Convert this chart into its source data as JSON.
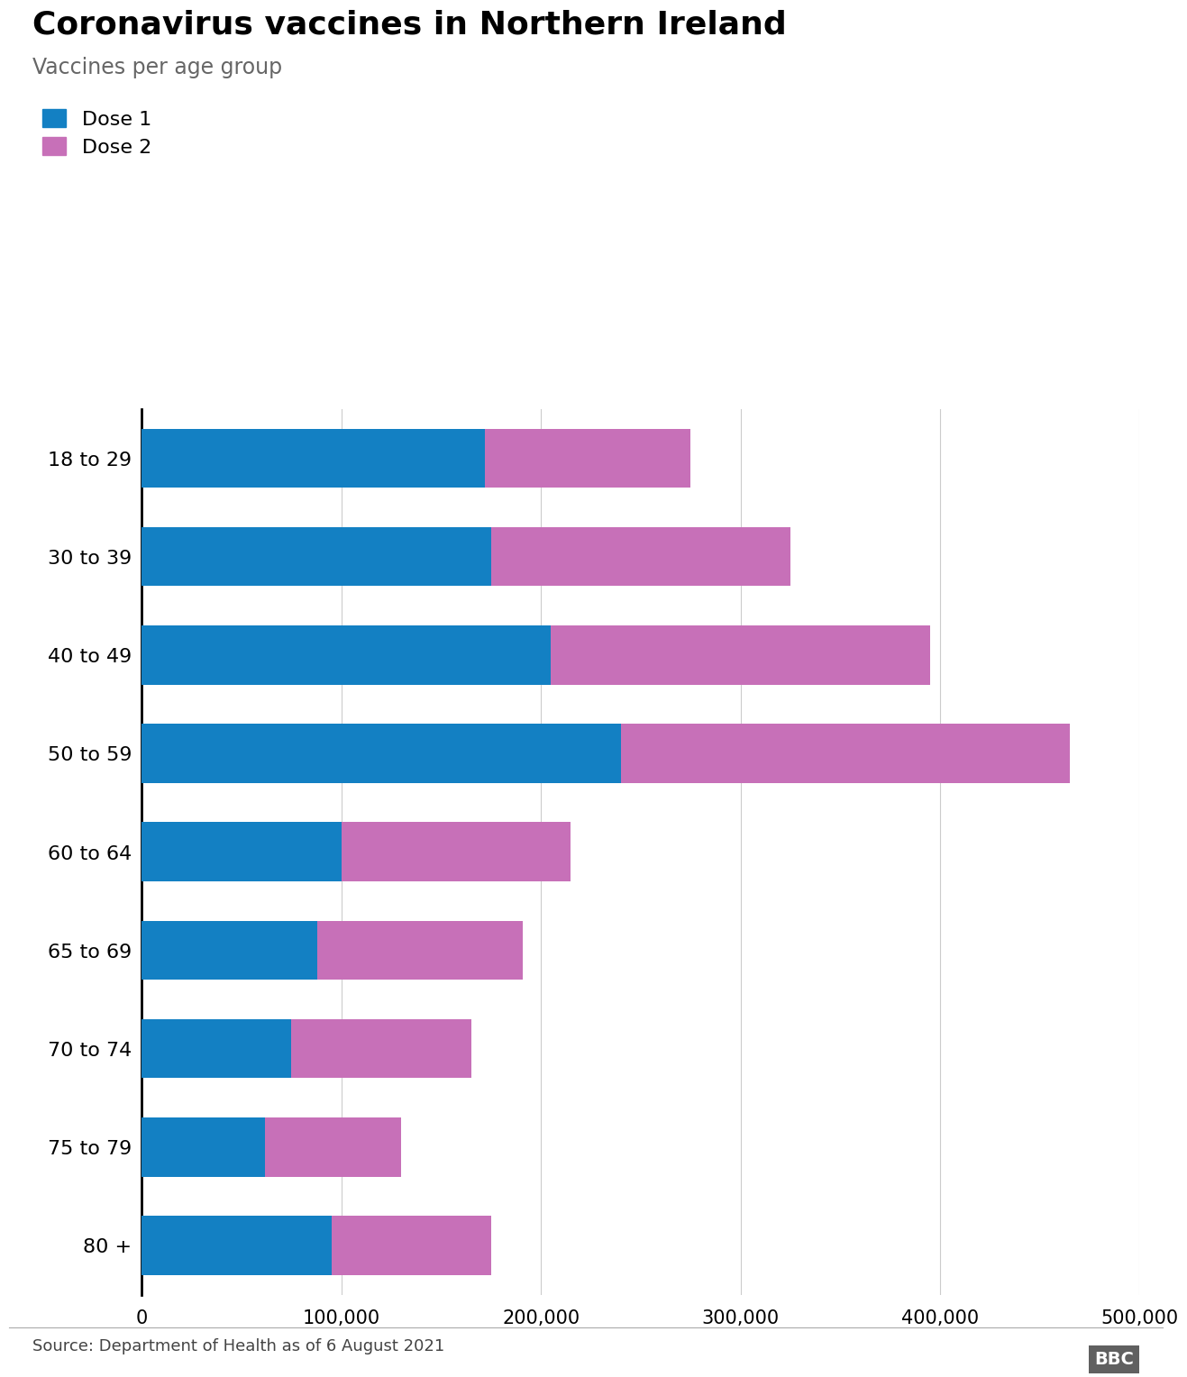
{
  "title": "Coronavirus vaccines in Northern Ireland",
  "subtitle": "Vaccines per age group",
  "source": "Source: Department of Health as of 6 August 2021",
  "categories": [
    "18 to 29",
    "30 to 39",
    "40 to 49",
    "50 to 59",
    "60 to 64",
    "65 to 69",
    "70 to 74",
    "75 to 79",
    "80 +"
  ],
  "dose1": [
    172000,
    175000,
    205000,
    240000,
    100000,
    88000,
    75000,
    62000,
    95000
  ],
  "dose2": [
    103000,
    150000,
    190000,
    225000,
    115000,
    103000,
    90000,
    68000,
    80000
  ],
  "dose1_color": "#1380c3",
  "dose2_color": "#c770b8",
  "xlim": [
    0,
    500000
  ],
  "xticks": [
    0,
    100000,
    200000,
    300000,
    400000,
    500000
  ],
  "grid_color": "#cccccc",
  "background_color": "#ffffff",
  "title_fontsize": 26,
  "subtitle_fontsize": 17,
  "label_fontsize": 16,
  "tick_fontsize": 15,
  "legend_fontsize": 16,
  "source_fontsize": 13,
  "bar_height": 0.6
}
